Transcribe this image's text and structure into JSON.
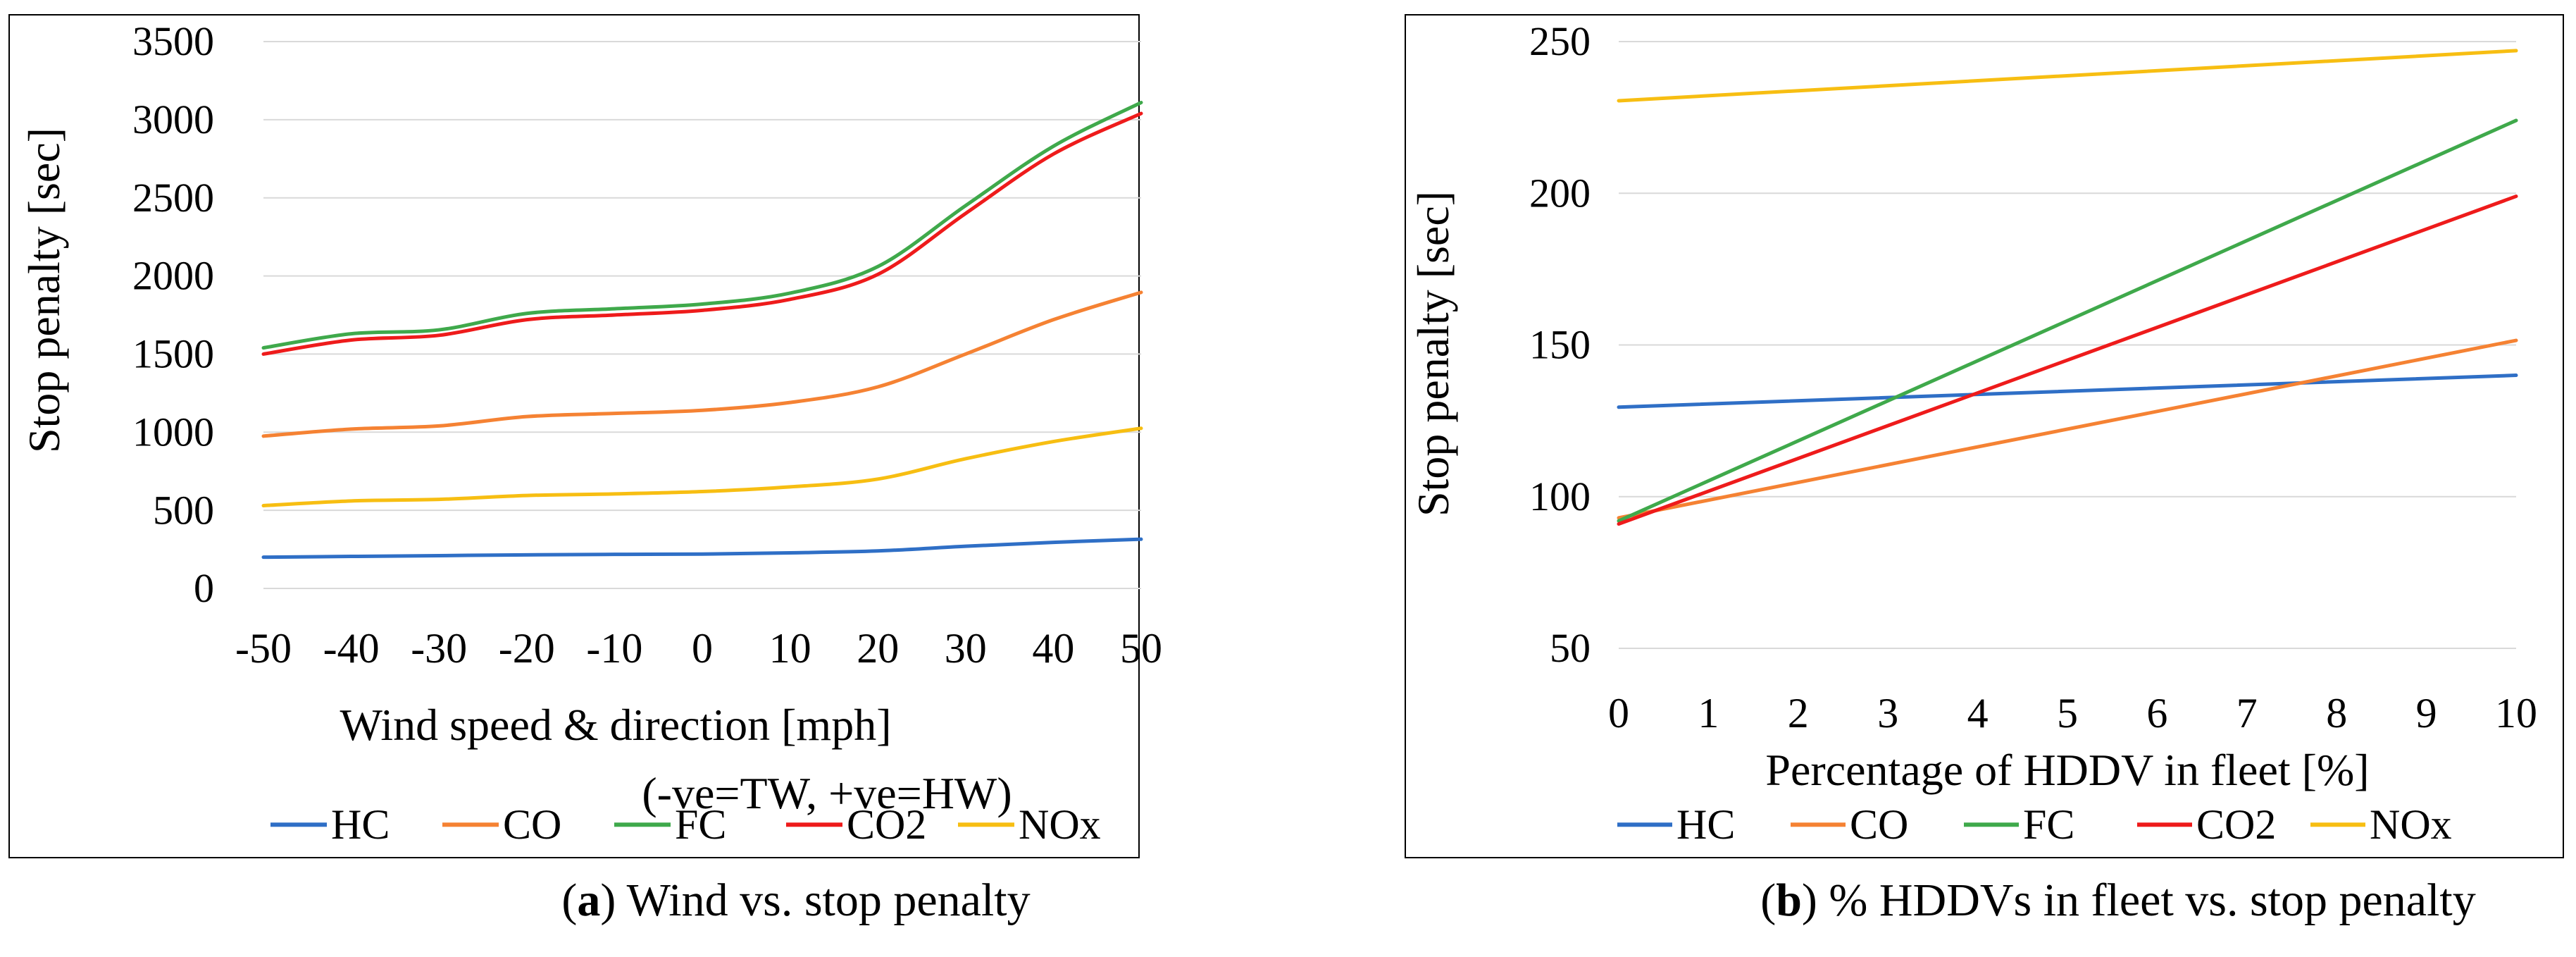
{
  "colors": {
    "HC": "#2f6fc6",
    "CO": "#f58233",
    "FC": "#3fa94b",
    "CO2": "#ee1b1b",
    "NOx": "#f7be12",
    "grid": "#d9d9d9"
  },
  "captions": {
    "a": {
      "letter": "a",
      "text": " Wind vs. stop penalty"
    },
    "b": {
      "letter": "b",
      "text": " % HDDVs in fleet vs. stop penalty"
    }
  },
  "chart_data": [
    {
      "id": "a",
      "type": "line",
      "title": "",
      "xlabel": "Wind speed & direction [mph]",
      "xlabel2": "(-ve=TW, +ve=HW)",
      "ylabel": "Stop penalty [sec]",
      "xlim": [
        -50,
        50
      ],
      "ylim": [
        0,
        3500
      ],
      "xticks": [
        -50,
        -40,
        -30,
        -20,
        -10,
        0,
        10,
        20,
        30,
        40,
        50
      ],
      "xtick_labels": [
        "-50",
        "-40",
        "-30",
        "-20",
        "-10",
        "0",
        "10",
        "20",
        "30",
        "40",
        "50"
      ],
      "yticks": [
        0,
        500,
        1000,
        1500,
        2000,
        2500,
        3000,
        3500
      ],
      "ytick_labels": [
        "0",
        "500",
        "1000",
        "1500",
        "2000",
        "2500",
        "3000",
        "3500"
      ],
      "grid": true,
      "legend_position": "bottom",
      "x": [
        -50,
        -40,
        -30,
        -20,
        -10,
        0,
        10,
        20,
        30,
        40,
        50
      ],
      "series": [
        {
          "name": "HC",
          "values": [
            200,
            205,
            210,
            215,
            218,
            220,
            228,
            240,
            270,
            295,
            315
          ]
        },
        {
          "name": "CO",
          "values": [
            975,
            1020,
            1040,
            1100,
            1120,
            1140,
            1190,
            1290,
            1500,
            1720,
            1895
          ]
        },
        {
          "name": "FC",
          "values": [
            1540,
            1630,
            1655,
            1760,
            1790,
            1820,
            1890,
            2060,
            2450,
            2830,
            3110
          ]
        },
        {
          "name": "CO2",
          "values": [
            1500,
            1590,
            1620,
            1720,
            1750,
            1780,
            1850,
            2010,
            2400,
            2780,
            3040
          ]
        },
        {
          "name": "NOx",
          "values": [
            530,
            560,
            570,
            595,
            605,
            620,
            650,
            700,
            830,
            940,
            1025
          ]
        }
      ]
    },
    {
      "id": "b",
      "type": "line",
      "title": "",
      "xlabel": "Percentage of HDDV in fleet [%]",
      "ylabel": "Stop penalty [sec]",
      "xlim": [
        0,
        10
      ],
      "ylim": [
        50,
        250
      ],
      "xticks": [
        0,
        1,
        2,
        3,
        4,
        5,
        6,
        7,
        8,
        9,
        10
      ],
      "xtick_labels": [
        "0",
        "1",
        "2",
        "3",
        "4",
        "5",
        "6",
        "7",
        "8",
        "9",
        "10"
      ],
      "yticks": [
        50,
        100,
        150,
        200,
        250
      ],
      "ytick_labels": [
        "50",
        "100",
        "150",
        "200",
        "250"
      ],
      "grid": true,
      "legend_position": "bottom",
      "x": [
        0,
        10
      ],
      "series": [
        {
          "name": "HC",
          "values": [
            129.5,
            140
          ]
        },
        {
          "name": "CO",
          "values": [
            93,
            151.5
          ]
        },
        {
          "name": "FC",
          "values": [
            92,
            224
          ]
        },
        {
          "name": "CO2",
          "values": [
            91,
            199
          ]
        },
        {
          "name": "NOx",
          "values": [
            230.5,
            247
          ]
        }
      ]
    }
  ]
}
